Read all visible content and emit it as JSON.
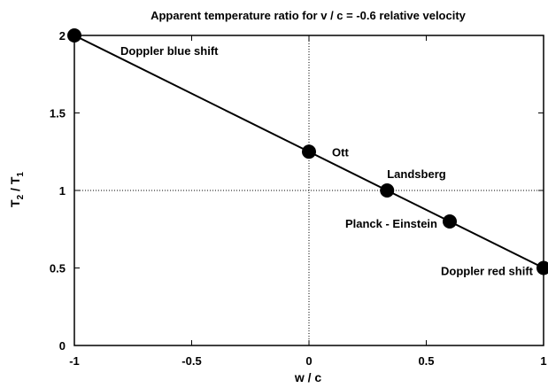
{
  "chart_data": {
    "type": "line",
    "title": "Apparent temperature ratio for v / c = -0.6 relative velocity",
    "xlabel": "w / c",
    "ylabel": {
      "main": "T",
      "sub2": "2",
      "sep": " / T",
      "sub1": "1"
    },
    "xlim": [
      -1,
      1
    ],
    "ylim": [
      0,
      2
    ],
    "xticks": [
      {
        "value": -1,
        "label": "-1"
      },
      {
        "value": -0.5,
        "label": "-0.5"
      },
      {
        "value": 0,
        "label": "0"
      },
      {
        "value": 0.5,
        "label": "0.5"
      },
      {
        "value": 1,
        "label": "1"
      }
    ],
    "yticks": [
      {
        "value": 0,
        "label": "0"
      },
      {
        "value": 0.5,
        "label": "0.5"
      },
      {
        "value": 1,
        "label": "1"
      },
      {
        "value": 1.5,
        "label": "1.5"
      },
      {
        "value": 2,
        "label": "2"
      }
    ],
    "reference_lines": {
      "x": 0,
      "y": 1,
      "style": "dotted"
    },
    "grid": false,
    "series": [
      {
        "points": [
          {
            "x": -1,
            "y": 2,
            "label": "Doppler blue shift"
          },
          {
            "x": 0,
            "y": 1.25,
            "label": "Ott"
          },
          {
            "x": 0.333,
            "y": 1.0,
            "label": "Landsberg"
          },
          {
            "x": 0.6,
            "y": 0.8,
            "label": "Planck - Einstein"
          },
          {
            "x": 1,
            "y": 0.5,
            "label": "Doppler red shift"
          }
        ]
      }
    ]
  }
}
